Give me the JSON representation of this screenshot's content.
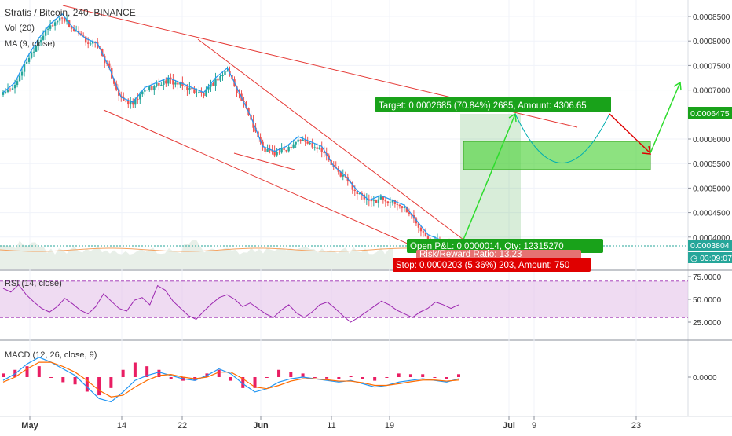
{
  "chart_data": [
    {
      "type": "candlestick",
      "title": "Stratis / Bitcoin, 240, BINANCE",
      "indicators": [
        "Vol (20)",
        "MA (9, close)"
      ],
      "x_tick_labels": [
        "May",
        "14",
        "22",
        "Jun",
        "11",
        "19",
        "Jul",
        "9",
        "23"
      ],
      "y_tick_labels": [
        "0.0008500",
        "0.0008000",
        "0.0007500",
        "0.0007000",
        "0.0006000",
        "0.0005500",
        "0.0005000",
        "0.0004500",
        "0.0004000"
      ],
      "ylim": [
        0.00036,
        0.00087
      ],
      "last_price": "0.0006475",
      "current_price": "0.0003804",
      "countdown": "03:09:07",
      "close_approx": [
        0.00069,
        0.00071,
        0.00076,
        0.0008,
        0.00083,
        0.00085,
        0.00082,
        0.0008,
        0.00079,
        0.00074,
        0.00068,
        0.00067,
        0.0007,
        0.00071,
        0.00072,
        0.00071,
        0.0007,
        0.00069,
        0.00072,
        0.00074,
        0.00069,
        0.00064,
        0.00058,
        0.00057,
        0.00058,
        0.0006,
        0.00059,
        0.00058,
        0.00054,
        0.00052,
        0.00049,
        0.00047,
        0.00048,
        0.00047,
        0.00046,
        0.00043,
        0.0004,
        0.00039,
        0.00038
      ],
      "trade": {
        "target_label": "Target: 0.0002685 (70.84%) 2685, Amount: 4306.65",
        "open_label": "Open P&L: 0.0000014, Qty: 12315270",
        "rr_label": "Risk/Reward Ratio: 13.23",
        "stop_label": "Stop: 0.0000203 (5.36%) 203, Amount: 750"
      },
      "colors": {
        "up": "#26a69a",
        "down": "#ef5350",
        "trendline": "#e53935",
        "target": "#19a21a",
        "stop": "#e00000",
        "ma": "#2196f3"
      }
    },
    {
      "type": "line",
      "title": "RSI (14, close)",
      "y_tick_labels": [
        "75.0000",
        "50.0000",
        "25.0000"
      ],
      "ylim": [
        15,
        80
      ],
      "bands": [
        30,
        70
      ],
      "values_approx": [
        62,
        58,
        66,
        55,
        47,
        40,
        36,
        42,
        51,
        45,
        38,
        34,
        42,
        56,
        48,
        40,
        37,
        49,
        52,
        44,
        65,
        60,
        48,
        40,
        32,
        28,
        37,
        45,
        52,
        55,
        50,
        42,
        46,
        40,
        34,
        30,
        38,
        44,
        35,
        30,
        36,
        44,
        47,
        40,
        32,
        25,
        30,
        36,
        42,
        48,
        44,
        38,
        34,
        30,
        36,
        40,
        47,
        44,
        40,
        44
      ],
      "color": "#9c27b0"
    },
    {
      "type": "line",
      "title": "MACD (12, 26, close, 9)",
      "y_tick_labels": [
        "0.0000"
      ],
      "ylim": [
        -1,
        1
      ],
      "macd_approx": [
        -0.1,
        0.1,
        0.4,
        0.6,
        0.45,
        0.25,
        0.05,
        -0.3,
        -0.65,
        -0.75,
        -0.45,
        -0.1,
        0.05,
        0.15,
        0.05,
        -0.05,
        -0.1,
        0.05,
        0.25,
        0.1,
        -0.2,
        -0.45,
        -0.35,
        -0.15,
        -0.05,
        0.0,
        -0.05,
        -0.1,
        -0.15,
        -0.1,
        -0.2,
        -0.3,
        -0.25,
        -0.15,
        -0.1,
        -0.05,
        -0.1,
        -0.15,
        -0.05
      ],
      "signal_approx": [
        -0.15,
        0.0,
        0.25,
        0.45,
        0.45,
        0.32,
        0.15,
        -0.1,
        -0.4,
        -0.6,
        -0.55,
        -0.3,
        -0.1,
        0.05,
        0.08,
        0.0,
        -0.05,
        0.0,
        0.15,
        0.15,
        -0.05,
        -0.3,
        -0.35,
        -0.25,
        -0.12,
        -0.05,
        -0.05,
        -0.08,
        -0.12,
        -0.12,
        -0.17,
        -0.25,
        -0.25,
        -0.2,
        -0.14,
        -0.09,
        -0.09,
        -0.12,
        -0.09
      ],
      "colors": {
        "macd": "#2196f3",
        "signal": "#ff6d00",
        "hist": "#e91e63"
      }
    }
  ]
}
